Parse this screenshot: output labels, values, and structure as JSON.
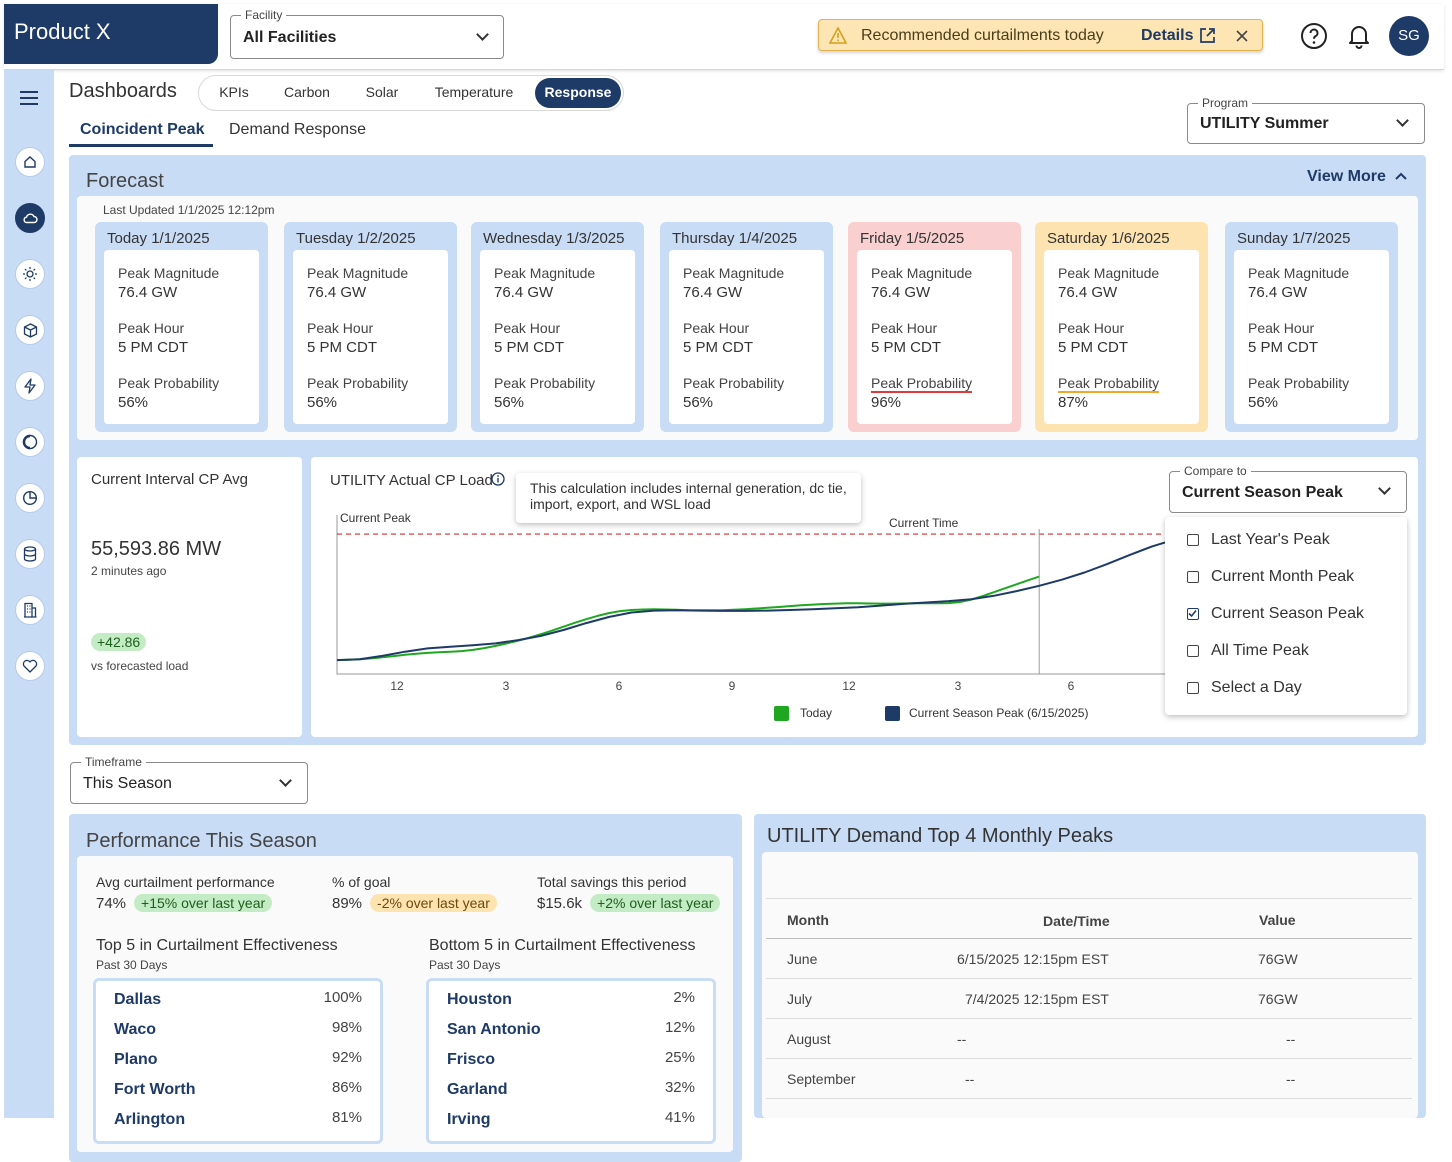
{
  "app": {
    "brand": "Product X"
  },
  "facility": {
    "label": "Facility",
    "value": "All Facilities"
  },
  "alert": {
    "message": "Recommended curtailments today",
    "details_label": "Details"
  },
  "user": {
    "initials": "SG"
  },
  "page": {
    "title": "Dashboards",
    "tabs": [
      "KPIs",
      "Carbon",
      "Solar",
      "Temperature",
      "Response"
    ],
    "active_tab": "Response",
    "subtabs": [
      "Coincident Peak",
      "Demand Response"
    ],
    "active_subtab": "Coincident Peak"
  },
  "program": {
    "label": "Program",
    "value": "UTILITY Summer"
  },
  "forecast": {
    "title": "Forecast",
    "view_more": "View More",
    "last_updated": "Last Updated 1/1/2025 12:12pm",
    "metric_labels": {
      "magnitude": "Peak Magnitude",
      "hour": "Peak Hour",
      "probability": "Peak Probability"
    },
    "days": [
      {
        "date": "Today 1/1/2025",
        "magnitude": "76.4 GW",
        "hour": "5 PM CDT",
        "probability": "56%",
        "status": "normal"
      },
      {
        "date": "Tuesday 1/2/2025",
        "magnitude": "76.4 GW",
        "hour": "5 PM CDT",
        "probability": "56%",
        "status": "normal"
      },
      {
        "date": "Wednesday 1/3/2025",
        "magnitude": "76.4 GW",
        "hour": "5 PM CDT",
        "probability": "56%",
        "status": "normal"
      },
      {
        "date": "Thursday 1/4/2025",
        "magnitude": "76.4 GW",
        "hour": "5 PM CDT",
        "probability": "56%",
        "status": "normal"
      },
      {
        "date": "Friday 1/5/2025",
        "magnitude": "76.4 GW",
        "hour": "5 PM CDT",
        "probability": "96%",
        "status": "high"
      },
      {
        "date": "Saturday 1/6/2025",
        "magnitude": "76.4 GW",
        "hour": "5 PM CDT",
        "probability": "87%",
        "status": "elevated"
      },
      {
        "date": "Sunday 1/7/2025",
        "magnitude": "76.4 GW",
        "hour": "5 PM CDT",
        "probability": "56%",
        "status": "normal"
      }
    ]
  },
  "interval": {
    "title": "Current Interval CP Avg",
    "value": "55,593.86 MW",
    "ago": "2 minutes ago",
    "delta": "+42.86",
    "delta_caption": "vs forecasted load"
  },
  "cp_chart": {
    "title": "UTILITY Actual CP Load",
    "tooltip": "This calculation includes internal generation, dc tie, import, export, and WSL load",
    "current_peak_label": "Current Peak",
    "current_time_label": "Current Time",
    "compare": {
      "label": "Compare to",
      "value": "Current Season Peak",
      "options": [
        {
          "label": "Last Year's Peak",
          "checked": false
        },
        {
          "label": "Current Month Peak",
          "checked": false
        },
        {
          "label": "Current Season Peak",
          "checked": true
        },
        {
          "label": "All Time Peak",
          "checked": false
        },
        {
          "label": "Select a Day",
          "checked": false
        }
      ]
    }
  },
  "chart_data": {
    "type": "line",
    "x_ticks": [
      "12",
      "3",
      "6",
      "9",
      "12",
      "3",
      "6"
    ],
    "series": [
      {
        "name": "Today",
        "color": "#1fa81f",
        "x": [
          0,
          1,
          2,
          3,
          4,
          5,
          6,
          7,
          8,
          9,
          10,
          11,
          12,
          13,
          14,
          15,
          16,
          17,
          18,
          19,
          20,
          21,
          22,
          23,
          24,
          25,
          26,
          27,
          28,
          29,
          30,
          31,
          32,
          33,
          34,
          35,
          36,
          37,
          38,
          39,
          40,
          41,
          42,
          43,
          44,
          45,
          46,
          47,
          48,
          49,
          50,
          51,
          52,
          53,
          54,
          55,
          56,
          57,
          58,
          59,
          60,
          61,
          62
        ],
        "y": [
          0,
          0.2,
          0.6,
          1.2,
          2,
          2.9,
          3.8,
          4.6,
          5.2,
          5.7,
          6,
          6.5,
          7.3,
          8.6,
          10.2,
          12,
          14,
          16.2,
          18.6,
          21.2,
          24,
          26.8,
          29.4,
          31.8,
          33.8,
          35.2,
          36,
          36.4,
          36.5,
          36.4,
          36.2,
          35.9,
          35.8,
          35.8,
          35.9,
          36.2,
          36.6,
          37.1,
          37.6,
          38.2,
          38.8,
          39.4,
          39.9,
          40.3,
          40.6,
          40.8,
          40.8,
          40.7,
          40.6,
          40.6,
          40.7,
          40.8,
          40.8,
          40.8,
          41,
          41.8,
          43.5,
          46,
          48.8,
          51.7,
          54.5,
          57.4,
          60
        ]
      },
      {
        "name": "Current Season Peak (6/15/2025)",
        "color": "#1e3a66",
        "x": [
          0,
          2,
          4,
          6,
          8,
          10,
          12,
          14,
          16,
          18,
          20,
          22,
          24,
          26,
          28,
          30,
          32,
          34,
          36,
          38,
          40,
          42,
          44,
          46,
          48,
          50,
          52,
          54,
          56,
          58,
          60,
          62,
          64,
          66,
          68,
          70,
          72,
          74,
          76,
          78,
          80,
          82,
          84,
          86
        ],
        "y": [
          0,
          0.6,
          3,
          6,
          8.4,
          9.6,
          10.6,
          12,
          14.4,
          17.4,
          21.6,
          26.6,
          31,
          34.2,
          35.6,
          35.8,
          35.6,
          35.4,
          35.4,
          35.6,
          36,
          36.6,
          37.2,
          38,
          39.2,
          40.4,
          41.4,
          42.4,
          43.8,
          46.2,
          49.6,
          53.4,
          57.8,
          63,
          69,
          75.6,
          81.8,
          86.8,
          89.4,
          90.4,
          90,
          84.6,
          71,
          53
        ]
      }
    ],
    "current_peak_y": 90.6,
    "current_time_x": 62,
    "xlim": [
      0,
      86
    ],
    "ylim": [
      -10,
      100
    ],
    "legend": [
      "Today",
      "Current Season Peak (6/15/2025)"
    ]
  },
  "timeframe": {
    "label": "Timeframe",
    "value": "This Season"
  },
  "performance": {
    "title": "Performance This Season",
    "stats": [
      {
        "label": "Avg curtailment performance",
        "value": "74%",
        "chip": "+15% over last year",
        "tone": "good"
      },
      {
        "label": "% of goal",
        "value": "89%",
        "chip": "-2% over last year",
        "tone": "warn"
      },
      {
        "label": "Total savings this period",
        "value": "$15.6k",
        "chip": "+2% over last year",
        "tone": "good"
      }
    ],
    "top": {
      "title": "Top 5 in Curtailment Effectiveness",
      "sub": "Past 30 Days",
      "items": [
        {
          "name": "Dallas",
          "value": "100%"
        },
        {
          "name": "Waco",
          "value": "98%"
        },
        {
          "name": "Plano",
          "value": "92%"
        },
        {
          "name": "Fort Worth",
          "value": "86%"
        },
        {
          "name": "Arlington",
          "value": "81%"
        }
      ]
    },
    "bottom": {
      "title": "Bottom 5 in Curtailment Effectiveness",
      "sub": "Past 30 Days",
      "items": [
        {
          "name": "Houston",
          "value": "2%"
        },
        {
          "name": "San Antonio",
          "value": "12%"
        },
        {
          "name": "Frisco",
          "value": "25%"
        },
        {
          "name": "Garland",
          "value": "32%"
        },
        {
          "name": "Irving",
          "value": "41%"
        }
      ]
    }
  },
  "peaks": {
    "title": "UTILITY Demand Top 4 Monthly Peaks",
    "headers": [
      "Month",
      "Date/Time",
      "Value"
    ],
    "rows": [
      {
        "month": "June",
        "datetime": "6/15/2025 12:15pm EST",
        "value": "76GW"
      },
      {
        "month": "July",
        "datetime": "7/4/2025 12:15pm EST",
        "value": "76GW"
      },
      {
        "month": "August",
        "datetime": "--",
        "value": "--"
      },
      {
        "month": "September",
        "datetime": "--",
        "value": "--"
      }
    ]
  },
  "colors": {
    "navy": "#1e3a66",
    "panel": "#c9dcf6",
    "today": "#1fa81f",
    "alert": "#fde6b3",
    "high": "#f9cfcf",
    "elevated": "#fde3b0"
  }
}
